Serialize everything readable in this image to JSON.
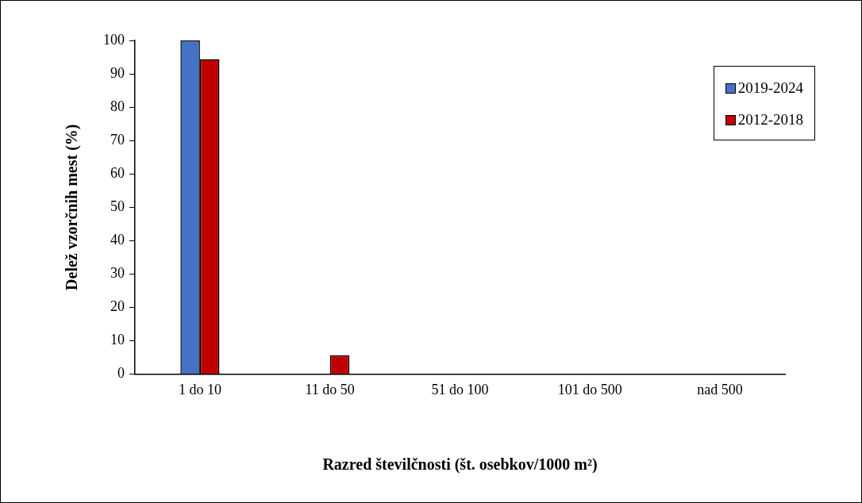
{
  "chart_data": {
    "type": "bar",
    "xlabel": "Razred številčnosti (št. osebkov/1000 m²)",
    "ylabel": "Delež vzorčnih mest (%)",
    "categories": [
      "1 do 10",
      "11 do 50",
      "51 do 100",
      "101 do 500",
      "nad 500"
    ],
    "series": [
      {
        "name": "2019-2024",
        "color": "#4472c4",
        "values": [
          100,
          0,
          0,
          0,
          0
        ]
      },
      {
        "name": "2012-2018",
        "color": "#c00000",
        "values": [
          94.4,
          5.6,
          0,
          0,
          0
        ]
      }
    ],
    "ylim": [
      0,
      100
    ],
    "yticks": [
      0,
      10,
      20,
      30,
      40,
      50,
      60,
      70,
      80,
      90,
      100
    ],
    "grid": false,
    "legend": "top right"
  }
}
